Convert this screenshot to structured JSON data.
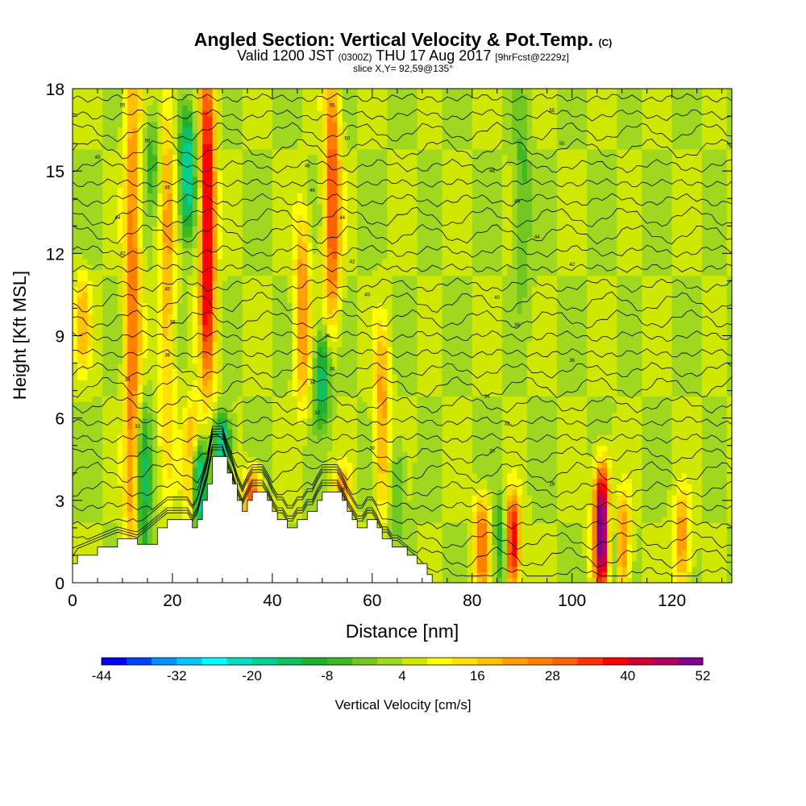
{
  "titles": {
    "main": "Angled Section: Vertical Velocity & Pot.Temp.",
    "main_units": "(C)",
    "valid_prefix": "Valid 1200 JST",
    "valid_utc": "(0300Z)",
    "valid_date": "THU 17 Aug 2017",
    "valid_fcst": "[9hrFcst@2229z]",
    "slice": "slice X,Y= 92,59@135°"
  },
  "chart_data": {
    "type": "heatmap",
    "title": "Angled Section: Vertical Velocity & Pot.Temp. (C)",
    "xlabel": "Distance [nm]",
    "ylabel": "Height [Kft MSL]",
    "xlim": [
      0,
      132
    ],
    "ylim": [
      0,
      18
    ],
    "xticks": [
      0,
      20,
      40,
      60,
      80,
      100,
      120
    ],
    "yticks": [
      0,
      3,
      6,
      9,
      12,
      15,
      18
    ],
    "colorbar": {
      "label": "Vertical Velocity [cm/s]",
      "tick_labels": [
        -44,
        -32,
        -20,
        -8,
        4,
        16,
        28,
        40,
        52
      ],
      "levels": [
        -44,
        -40,
        -36,
        -32,
        -28,
        -24,
        -20,
        -16,
        -12,
        -8,
        -4,
        0,
        4,
        8,
        12,
        16,
        20,
        24,
        28,
        32,
        36,
        40,
        44,
        48,
        52
      ],
      "colors": [
        "#0000ff",
        "#0040ff",
        "#0090ff",
        "#00c8ff",
        "#00ffff",
        "#00e0c0",
        "#00d090",
        "#10c060",
        "#20b030",
        "#40b820",
        "#70c820",
        "#a0d820",
        "#d0e800",
        "#ffff00",
        "#ffe000",
        "#ffc000",
        "#ffa000",
        "#ff8000",
        "#ff6000",
        "#ff3000",
        "#ff0000",
        "#d00030",
        "#b00060",
        "#800090"
      ]
    },
    "terrain": {
      "x": [
        0,
        1,
        5,
        9,
        13,
        17,
        19,
        21,
        23,
        24,
        25,
        26,
        27,
        28,
        29,
        30,
        31,
        32,
        33,
        34,
        35,
        36,
        37,
        38,
        39,
        40,
        41,
        42,
        43,
        44,
        45,
        46,
        47,
        48,
        49,
        50,
        51,
        52,
        53,
        54,
        55,
        56,
        57,
        58,
        59,
        60,
        61,
        62,
        63,
        64,
        65,
        67,
        69,
        71,
        72,
        132
      ],
      "y": [
        0.7,
        1.0,
        1.3,
        1.6,
        1.4,
        2.0,
        2.3,
        2.3,
        2.3,
        2.0,
        2.3,
        3.0,
        3.6,
        4.6,
        4.6,
        4.6,
        4.0,
        3.6,
        3.0,
        2.6,
        3.0,
        3.3,
        3.3,
        3.3,
        3.0,
        2.6,
        2.3,
        2.3,
        2.0,
        2.0,
        2.3,
        2.3,
        2.6,
        2.6,
        3.0,
        3.3,
        3.3,
        3.3,
        3.3,
        3.0,
        2.6,
        2.3,
        2.0,
        2.0,
        2.3,
        2.3,
        2.0,
        1.6,
        1.6,
        1.3,
        1.3,
        1.0,
        0.7,
        0.3,
        0.0,
        0.0
      ]
    },
    "updraft_cores": [
      {
        "x": 12,
        "z0": 0,
        "z1": 18,
        "amp": 24
      },
      {
        "x": 19,
        "z0": 5,
        "z1": 18,
        "amp": 16
      },
      {
        "x": 27,
        "z0": 8,
        "z1": 18,
        "amp": 40
      },
      {
        "x": 24,
        "z0": 2,
        "z1": 6,
        "amp": 28
      },
      {
        "x": 36,
        "z0": 2,
        "z1": 4,
        "amp": 30
      },
      {
        "x": 46,
        "z0": 7,
        "z1": 13,
        "amp": 20
      },
      {
        "x": 52,
        "z0": 10,
        "z1": 18,
        "amp": 28
      },
      {
        "x": 54,
        "z0": 2,
        "z1": 4,
        "amp": 20
      },
      {
        "x": 62,
        "z0": 3,
        "z1": 9,
        "amp": 18
      },
      {
        "x": 82,
        "z0": 0,
        "z1": 3,
        "amp": 24
      },
      {
        "x": 88,
        "z0": 0,
        "z1": 3,
        "amp": 40
      },
      {
        "x": 106,
        "z0": 0,
        "z1": 4,
        "amp": 52
      },
      {
        "x": 110,
        "z0": 0,
        "z1": 3,
        "amp": 24
      },
      {
        "x": 122,
        "z0": 0,
        "z1": 3,
        "amp": 20
      },
      {
        "x": 2,
        "z0": 8,
        "z1": 11,
        "amp": 14
      }
    ],
    "downdraft_cores": [
      {
        "x": 14,
        "z0": 0,
        "z1": 6,
        "amp": -18
      },
      {
        "x": 16,
        "z0": 14,
        "z1": 17,
        "amp": -10
      },
      {
        "x": 23,
        "z0": 13,
        "z1": 17,
        "amp": -24
      },
      {
        "x": 25,
        "z0": 2,
        "z1": 5,
        "amp": -36
      },
      {
        "x": 30,
        "z0": 4,
        "z1": 6,
        "amp": -28
      },
      {
        "x": 50,
        "z0": 6,
        "z1": 9,
        "amp": -20
      },
      {
        "x": 65,
        "z0": 2,
        "z1": 5,
        "amp": -10
      },
      {
        "x": 86,
        "z0": 0,
        "z1": 3,
        "amp": -18
      },
      {
        "x": 108,
        "z0": 0,
        "z1": 3,
        "amp": -16
      },
      {
        "x": 90,
        "z0": 11,
        "z1": 17,
        "amp": -10
      }
    ],
    "theta_contours": {
      "base_height": 0.3,
      "spacing": 0.62,
      "count": 29,
      "labels": [
        {
          "x": 10,
          "z": 17.4,
          "text": "55"
        },
        {
          "x": 15,
          "z": 16.1,
          "text": "50"
        },
        {
          "x": 5,
          "z": 15.5,
          "text": "45"
        },
        {
          "x": 19,
          "z": 14.4,
          "text": "45"
        },
        {
          "x": 9,
          "z": 13.3,
          "text": "44"
        },
        {
          "x": 10,
          "z": 12.0,
          "text": "42"
        },
        {
          "x": 19,
          "z": 10.7,
          "text": "40"
        },
        {
          "x": 20,
          "z": 9.5,
          "text": "38"
        },
        {
          "x": 19,
          "z": 8.3,
          "text": "36"
        },
        {
          "x": 11,
          "z": 7.4,
          "text": "34"
        },
        {
          "x": 13,
          "z": 5.7,
          "text": "32"
        },
        {
          "x": 52,
          "z": 17.4,
          "text": "55"
        },
        {
          "x": 55,
          "z": 16.2,
          "text": "50"
        },
        {
          "x": 47,
          "z": 15.2,
          "text": "48"
        },
        {
          "x": 48,
          "z": 14.3,
          "text": "46"
        },
        {
          "x": 54,
          "z": 13.3,
          "text": "44"
        },
        {
          "x": 56,
          "z": 11.7,
          "text": "42"
        },
        {
          "x": 59,
          "z": 10.5,
          "text": "40"
        },
        {
          "x": 51,
          "z": 9.0,
          "text": "38"
        },
        {
          "x": 52,
          "z": 7.8,
          "text": "36"
        },
        {
          "x": 48,
          "z": 7.3,
          "text": "34"
        },
        {
          "x": 49,
          "z": 6.2,
          "text": "32"
        },
        {
          "x": 60,
          "z": 4.9,
          "text": "30"
        },
        {
          "x": 54,
          "z": 3.4,
          "text": "28"
        },
        {
          "x": 96,
          "z": 17.2,
          "text": "55"
        },
        {
          "x": 98,
          "z": 16.0,
          "text": "50"
        },
        {
          "x": 84,
          "z": 15.0,
          "text": "48"
        },
        {
          "x": 89,
          "z": 13.9,
          "text": "46"
        },
        {
          "x": 93,
          "z": 12.6,
          "text": "44"
        },
        {
          "x": 100,
          "z": 11.6,
          "text": "42"
        },
        {
          "x": 85,
          "z": 10.4,
          "text": "40"
        },
        {
          "x": 89,
          "z": 9.4,
          "text": "38"
        },
        {
          "x": 100,
          "z": 8.1,
          "text": "36"
        },
        {
          "x": 83,
          "z": 6.8,
          "text": "34"
        },
        {
          "x": 87,
          "z": 5.8,
          "text": "32"
        },
        {
          "x": 84,
          "z": 4.8,
          "text": "30"
        },
        {
          "x": 96,
          "z": 3.6,
          "text": "28"
        }
      ]
    }
  }
}
